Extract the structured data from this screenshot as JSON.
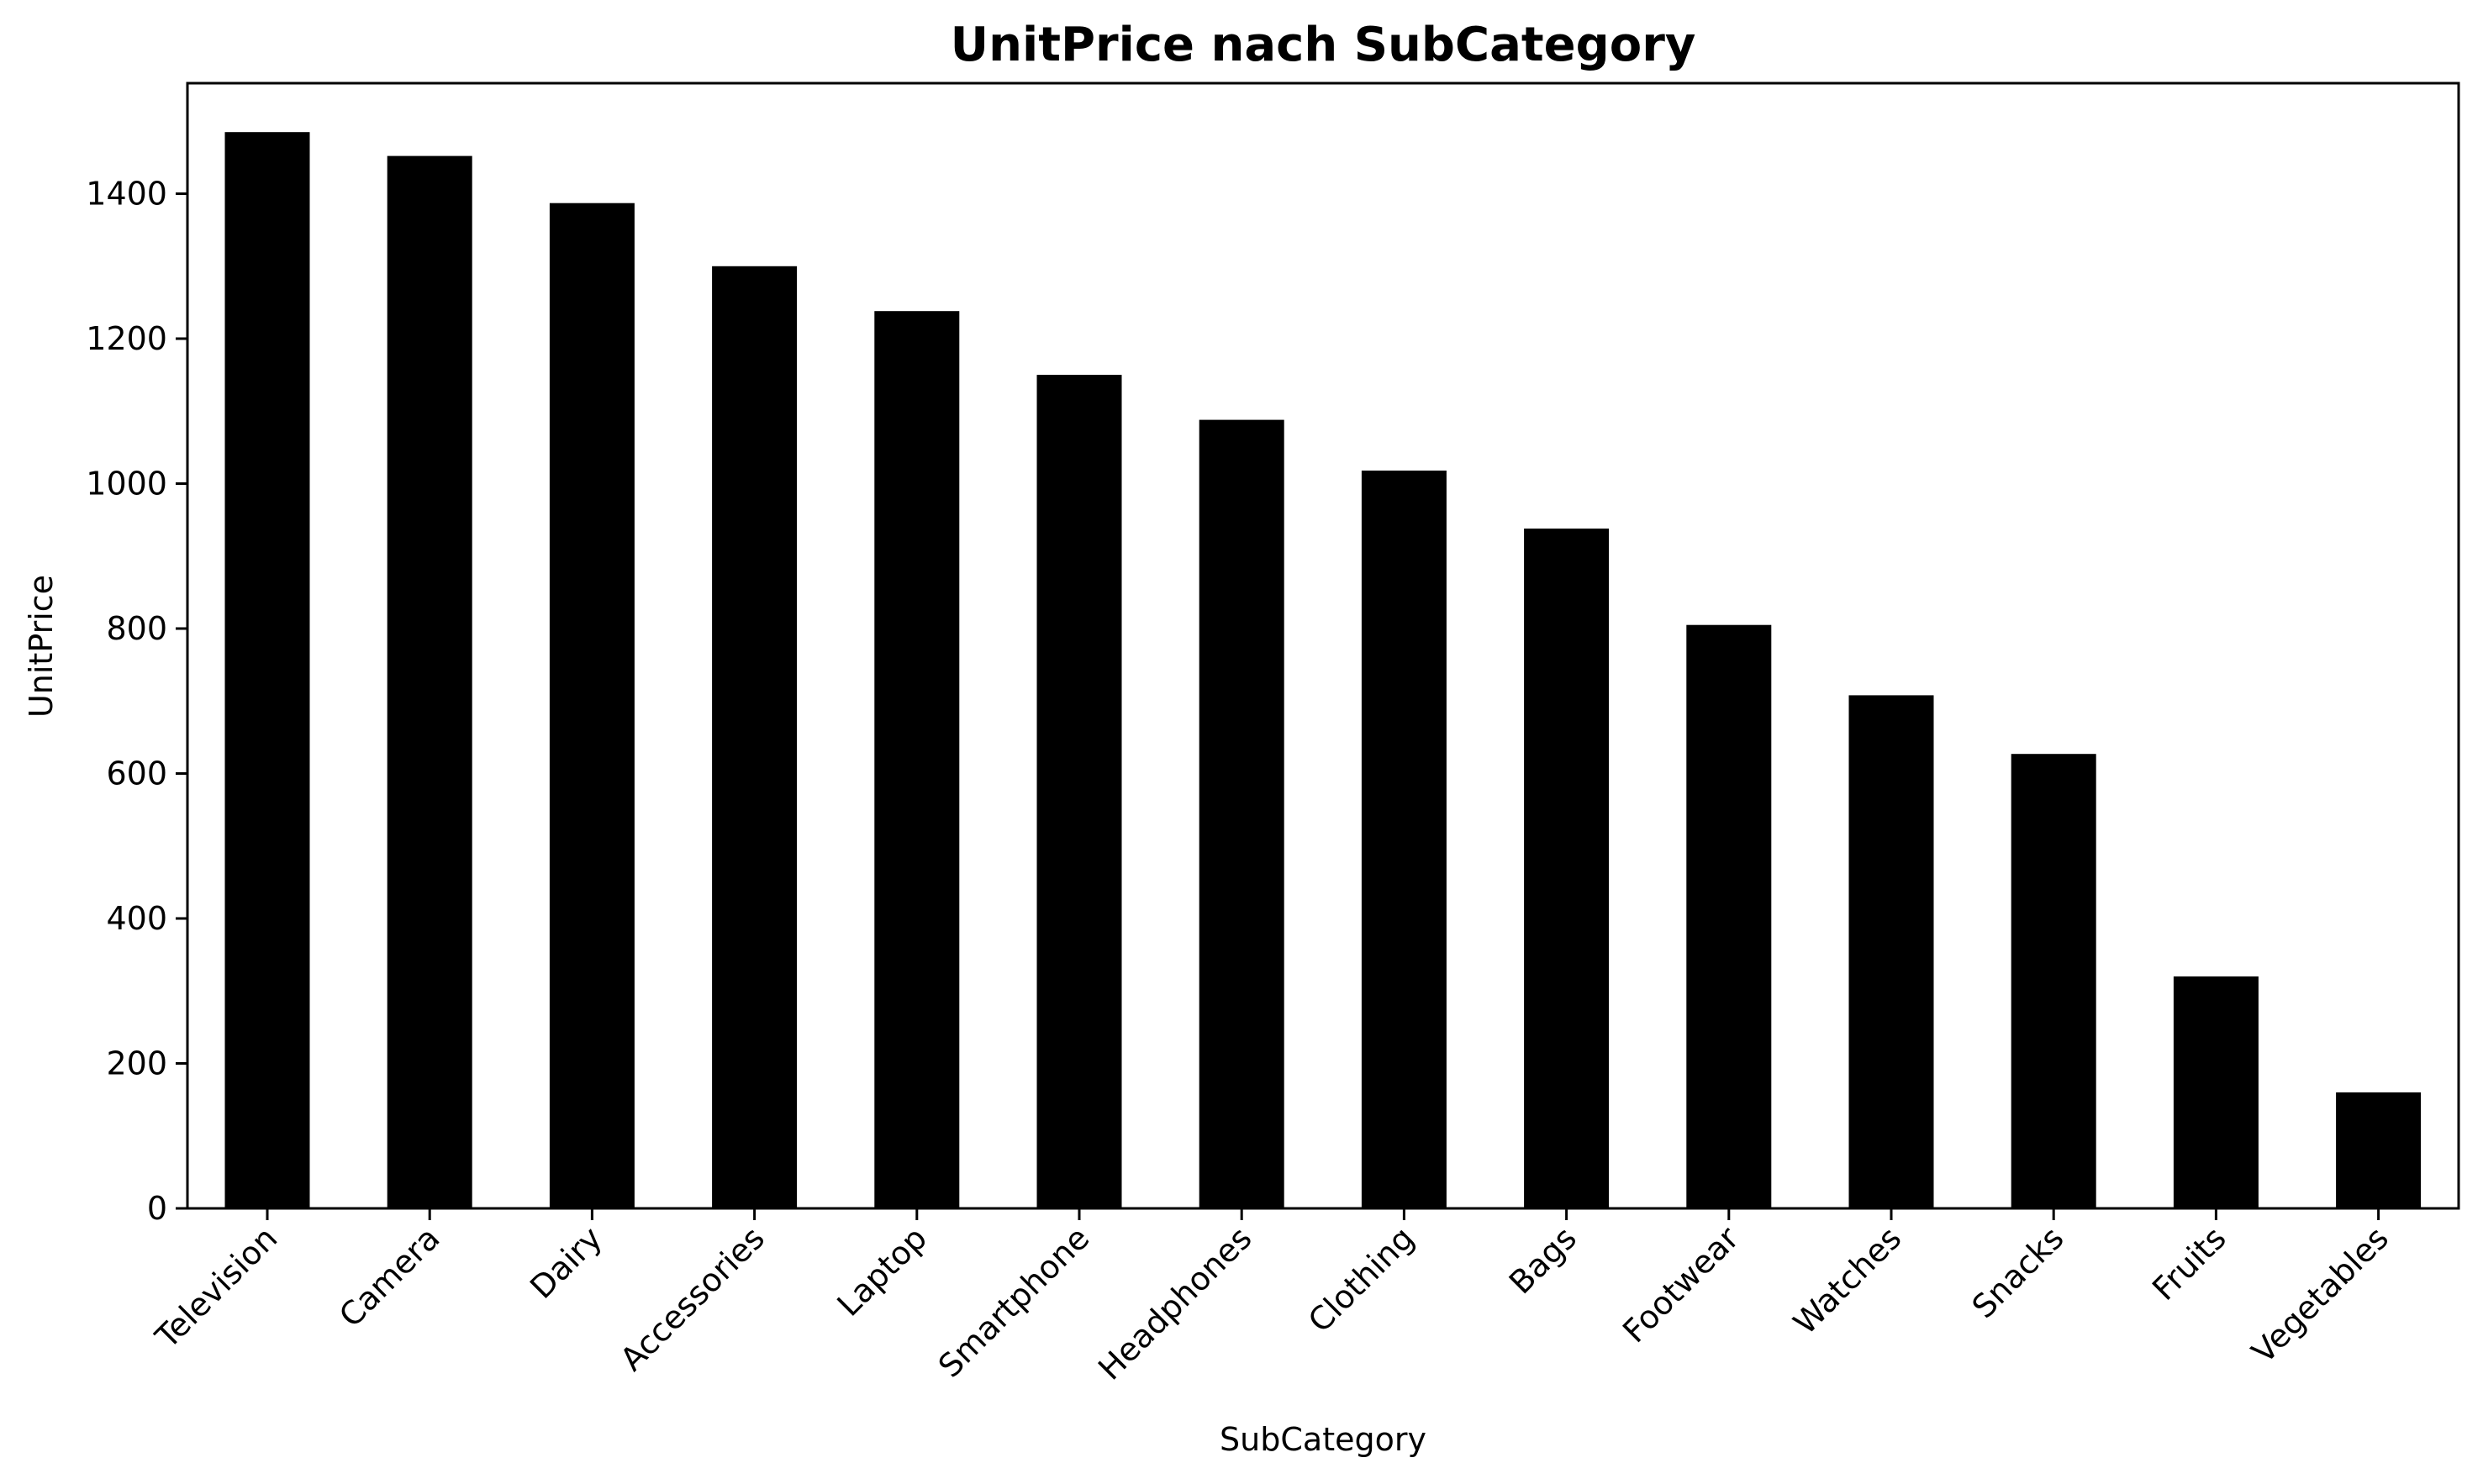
{
  "chart_data": {
    "type": "bar",
    "title": "UnitPrice nach SubCategory",
    "xlabel": "SubCategory",
    "ylabel": "UnitPrice",
    "categories": [
      "Television",
      "Camera",
      "Dairy",
      "Accessories",
      "Laptop",
      "Smartphone",
      "Headphones",
      "Clothing",
      "Bags",
      "Footwear",
      "Watches",
      "Snacks",
      "Fruits",
      "Vegetables"
    ],
    "values": [
      1485,
      1452,
      1387,
      1300,
      1238,
      1150,
      1088,
      1018,
      938,
      805,
      708,
      627,
      320,
      160
    ],
    "ylim": [
      0,
      1560
    ],
    "yticks": [
      0,
      200,
      400,
      600,
      800,
      1000,
      1200,
      1400
    ],
    "bar_color": "#000000",
    "grid": false,
    "legend": "none"
  }
}
